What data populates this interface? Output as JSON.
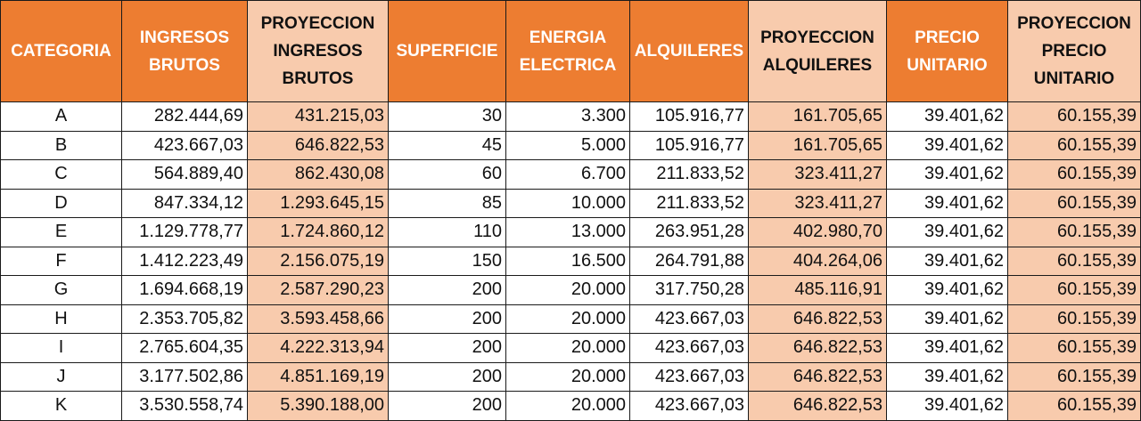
{
  "table": {
    "columns": [
      {
        "key": "categoria",
        "lines": [
          "CATEGORIA"
        ],
        "style": "orange"
      },
      {
        "key": "ingresos_brutos",
        "lines": [
          "INGRESOS",
          "BRUTOS"
        ],
        "style": "orange"
      },
      {
        "key": "proyeccion_ingresos_brutos",
        "lines": [
          "PROYECCION",
          "INGRESOS",
          "BRUTOS"
        ],
        "style": "peach"
      },
      {
        "key": "superficie",
        "lines": [
          "SUPERFICIE"
        ],
        "style": "orange"
      },
      {
        "key": "energia_electrica",
        "lines": [
          "ENERGIA",
          "ELECTRICA"
        ],
        "style": "orange"
      },
      {
        "key": "alquileres",
        "lines": [
          "ALQUILERES"
        ],
        "style": "orange"
      },
      {
        "key": "proyeccion_alquileres",
        "lines": [
          "PROYECCION",
          "ALQUILERES"
        ],
        "style": "peach"
      },
      {
        "key": "precio_unitario",
        "lines": [
          "PRECIO",
          "UNITARIO"
        ],
        "style": "orange"
      },
      {
        "key": "proyeccion_precio_unitario",
        "lines": [
          "PROYECCION",
          "PRECIO",
          "UNITARIO"
        ],
        "style": "peach"
      }
    ],
    "rows": [
      [
        "A",
        "282.444,69",
        "431.215,03",
        "30",
        "3.300",
        "105.916,77",
        "161.705,65",
        "39.401,62",
        "60.155,39"
      ],
      [
        "B",
        "423.667,03",
        "646.822,53",
        "45",
        "5.000",
        "105.916,77",
        "161.705,65",
        "39.401,62",
        "60.155,39"
      ],
      [
        "C",
        "564.889,40",
        "862.430,08",
        "60",
        "6.700",
        "211.833,52",
        "323.411,27",
        "39.401,62",
        "60.155,39"
      ],
      [
        "D",
        "847.334,12",
        "1.293.645,15",
        "85",
        "10.000",
        "211.833,52",
        "323.411,27",
        "39.401,62",
        "60.155,39"
      ],
      [
        "E",
        "1.129.778,77",
        "1.724.860,12",
        "110",
        "13.000",
        "263.951,28",
        "402.980,70",
        "39.401,62",
        "60.155,39"
      ],
      [
        "F",
        "1.412.223,49",
        "2.156.075,19",
        "150",
        "16.500",
        "264.791,88",
        "404.264,06",
        "39.401,62",
        "60.155,39"
      ],
      [
        "G",
        "1.694.668,19",
        "2.587.290,23",
        "200",
        "20.000",
        "317.750,28",
        "485.116,91",
        "39.401,62",
        "60.155,39"
      ],
      [
        "H",
        "2.353.705,82",
        "3.593.458,66",
        "200",
        "20.000",
        "423.667,03",
        "646.822,53",
        "39.401,62",
        "60.155,39"
      ],
      [
        "I",
        "2.765.604,35",
        "4.222.313,94",
        "200",
        "20.000",
        "423.667,03",
        "646.822,53",
        "39.401,62",
        "60.155,39"
      ],
      [
        "J",
        "3.177.502,86",
        "4.851.169,19",
        "200",
        "20.000",
        "423.667,03",
        "646.822,53",
        "39.401,62",
        "60.155,39"
      ],
      [
        "K",
        "3.530.558,74",
        "5.390.188,00",
        "200",
        "20.000",
        "423.667,03",
        "646.822,53",
        "39.401,62",
        "60.155,39"
      ]
    ]
  },
  "colors": {
    "header_orange": "#ed7d31",
    "projection_peach": "#f8cbad",
    "header_text": "#ffffff",
    "border": "#1a1a1a"
  }
}
